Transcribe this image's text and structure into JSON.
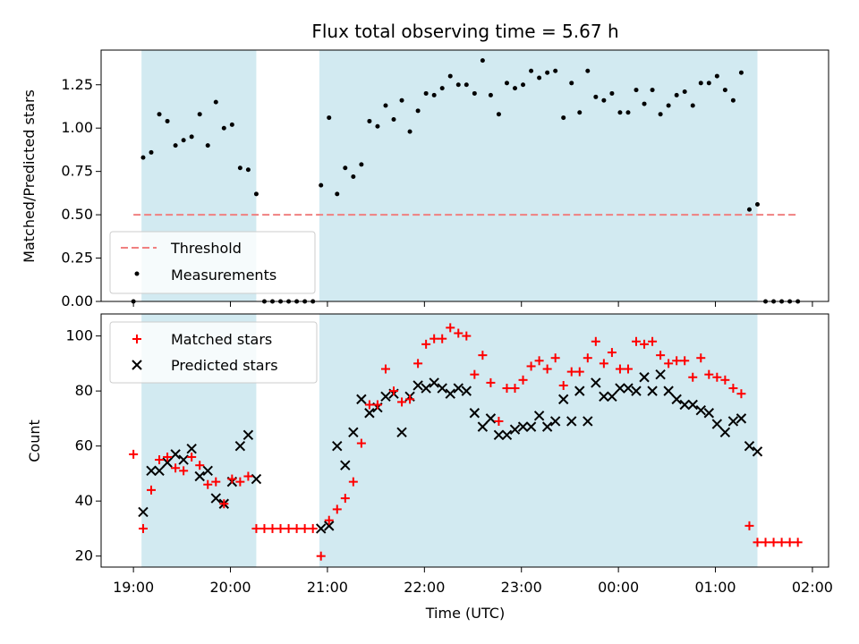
{
  "colors": {
    "shade": "#add8e6",
    "threshold": "#f08080",
    "measurement": "#000000",
    "matched": "#ff0000",
    "predicted": "#000000"
  },
  "chart_data": [
    {
      "type": "scatter",
      "title": "Flux total observing time = 5.67 h",
      "xlabel": "",
      "ylabel": "Matched/Predicted stars",
      "xlim": [
        "18:40",
        "02:10"
      ],
      "ylim": [
        0,
        1.45
      ],
      "y_ticks": [
        0.0,
        0.25,
        0.5,
        0.75,
        1.0,
        1.25
      ],
      "y_tick_labels": [
        "0.00",
        "0.25",
        "0.50",
        "0.75",
        "1.00",
        "1.25"
      ],
      "x_tick_labels_shown": false,
      "shaded_intervals": [
        [
          "19:05",
          "20:16"
        ],
        [
          "20:55",
          "01:26"
        ]
      ],
      "legend": {
        "placement": "lower-left",
        "entries": [
          "Threshold",
          "Measurements"
        ]
      },
      "threshold": {
        "name": "Threshold",
        "x": [
          "19:00",
          "01:50"
        ],
        "y": 0.5,
        "style": "dashed"
      },
      "series": [
        {
          "name": "Measurements",
          "x": [
            "19:00",
            "19:06",
            "19:11",
            "19:16",
            "19:21",
            "19:26",
            "19:31",
            "19:36",
            "19:41",
            "19:46",
            "19:51",
            "19:56",
            "20:01",
            "20:06",
            "20:11",
            "20:16",
            "20:21",
            "20:26",
            "20:31",
            "20:36",
            "20:41",
            "20:46",
            "20:51",
            "20:56",
            "21:01",
            "21:06",
            "21:11",
            "21:16",
            "21:21",
            "21:26",
            "21:31",
            "21:36",
            "21:41",
            "21:46",
            "21:51",
            "21:56",
            "22:01",
            "22:06",
            "22:11",
            "22:16",
            "22:21",
            "22:26",
            "22:31",
            "22:36",
            "22:41",
            "22:46",
            "22:51",
            "22:56",
            "23:01",
            "23:06",
            "23:11",
            "23:16",
            "23:21",
            "23:26",
            "23:31",
            "23:36",
            "23:41",
            "23:46",
            "23:51",
            "23:56",
            "00:01",
            "00:06",
            "00:11",
            "00:16",
            "00:21",
            "00:26",
            "00:31",
            "00:36",
            "00:41",
            "00:46",
            "00:51",
            "00:56",
            "01:01",
            "01:06",
            "01:11",
            "01:16",
            "01:21",
            "01:26",
            "01:31",
            "01:36",
            "01:41",
            "01:46",
            "01:51"
          ],
          "y": [
            0.0,
            0.83,
            0.86,
            1.08,
            1.04,
            0.9,
            0.93,
            0.95,
            1.08,
            0.9,
            1.15,
            1.0,
            1.02,
            0.77,
            0.76,
            0.62,
            0.0,
            0.0,
            0.0,
            0.0,
            0.0,
            0.0,
            0.0,
            0.67,
            1.06,
            0.62,
            0.77,
            0.72,
            0.79,
            1.04,
            1.01,
            1.13,
            1.05,
            1.16,
            0.98,
            1.1,
            1.2,
            1.19,
            1.23,
            1.3,
            1.25,
            1.25,
            1.2,
            1.39,
            1.19,
            1.08,
            1.26,
            1.23,
            1.25,
            1.33,
            1.29,
            1.32,
            1.33,
            1.06,
            1.26,
            1.09,
            1.33,
            1.18,
            1.16,
            1.2,
            1.09,
            1.09,
            1.22,
            1.14,
            1.22,
            1.08,
            1.13,
            1.19,
            1.21,
            1.13,
            1.26,
            1.26,
            1.3,
            1.22,
            1.16,
            1.32,
            0.53,
            0.56,
            0.0,
            0.0,
            0.0,
            0.0,
            0.0
          ]
        }
      ]
    },
    {
      "type": "scatter",
      "title": "",
      "xlabel": "Time (UTC)",
      "ylabel": "Count",
      "xlim": [
        "18:40",
        "02:10"
      ],
      "ylim": [
        16,
        108
      ],
      "y_ticks": [
        20,
        40,
        60,
        80,
        100
      ],
      "y_tick_labels": [
        "20",
        "40",
        "60",
        "80",
        "100"
      ],
      "x_ticks": [
        "19:00",
        "20:00",
        "21:00",
        "22:00",
        "23:00",
        "00:00",
        "01:00",
        "02:00"
      ],
      "x_tick_labels": [
        "19:00",
        "20:00",
        "21:00",
        "22:00",
        "23:00",
        "00:00",
        "01:00",
        "02:00"
      ],
      "shaded_intervals": [
        [
          "19:05",
          "20:16"
        ],
        [
          "20:55",
          "01:26"
        ]
      ],
      "legend": {
        "placement": "top-left",
        "entries": [
          "Matched stars",
          "Predicted stars"
        ]
      },
      "series": [
        {
          "name": "Matched stars",
          "marker": "plus",
          "x": [
            "19:00",
            "19:06",
            "19:11",
            "19:16",
            "19:21",
            "19:26",
            "19:31",
            "19:36",
            "19:41",
            "19:46",
            "19:51",
            "19:56",
            "20:01",
            "20:06",
            "20:11",
            "20:16",
            "20:21",
            "20:26",
            "20:31",
            "20:36",
            "20:41",
            "20:46",
            "20:51",
            "20:56",
            "21:01",
            "21:06",
            "21:11",
            "21:16",
            "21:21",
            "21:26",
            "21:31",
            "21:36",
            "21:41",
            "21:46",
            "21:51",
            "21:56",
            "22:01",
            "22:06",
            "22:11",
            "22:16",
            "22:21",
            "22:26",
            "22:31",
            "22:36",
            "22:41",
            "22:46",
            "22:51",
            "22:56",
            "23:01",
            "23:06",
            "23:11",
            "23:16",
            "23:21",
            "23:26",
            "23:31",
            "23:36",
            "23:41",
            "23:46",
            "23:51",
            "23:56",
            "00:01",
            "00:06",
            "00:11",
            "00:16",
            "00:21",
            "00:26",
            "00:31",
            "00:36",
            "00:41",
            "00:46",
            "00:51",
            "00:56",
            "01:01",
            "01:06",
            "01:11",
            "01:16",
            "01:21",
            "01:26",
            "01:31",
            "01:36",
            "01:41",
            "01:46",
            "01:51"
          ],
          "y": [
            57,
            30,
            44,
            55,
            56,
            52,
            51,
            56,
            53,
            46,
            47,
            39,
            48,
            47,
            49,
            30,
            30,
            30,
            30,
            30,
            30,
            30,
            30,
            20,
            33,
            37,
            41,
            47,
            61,
            75,
            75,
            88,
            80,
            76,
            77,
            90,
            97,
            99,
            99,
            103,
            101,
            100,
            86,
            93,
            83,
            69,
            81,
            81,
            84,
            89,
            91,
            88,
            92,
            82,
            87,
            87,
            92,
            98,
            90,
            94,
            88,
            88,
            98,
            97,
            98,
            93,
            90,
            91,
            91,
            85,
            92,
            86,
            85,
            84,
            81,
            79,
            31,
            25,
            25,
            25,
            25,
            25,
            25
          ]
        },
        {
          "name": "Predicted stars",
          "marker": "cross",
          "x": [
            "19:06",
            "19:11",
            "19:16",
            "19:21",
            "19:26",
            "19:31",
            "19:36",
            "19:41",
            "19:46",
            "19:51",
            "19:56",
            "20:01",
            "20:06",
            "20:11",
            "20:16",
            "20:56",
            "21:01",
            "21:06",
            "21:11",
            "21:16",
            "21:21",
            "21:26",
            "21:31",
            "21:36",
            "21:41",
            "21:46",
            "21:51",
            "21:56",
            "22:01",
            "22:06",
            "22:11",
            "22:16",
            "22:21",
            "22:26",
            "22:31",
            "22:36",
            "22:41",
            "22:46",
            "22:51",
            "22:56",
            "23:01",
            "23:06",
            "23:11",
            "23:16",
            "23:21",
            "23:26",
            "23:31",
            "23:36",
            "23:41",
            "23:46",
            "23:51",
            "23:56",
            "00:01",
            "00:06",
            "00:11",
            "00:16",
            "00:21",
            "00:26",
            "00:31",
            "00:36",
            "00:41",
            "00:46",
            "00:51",
            "00:56",
            "01:01",
            "01:06",
            "01:11",
            "01:16",
            "01:21",
            "01:26"
          ],
          "y": [
            36,
            51,
            51,
            54,
            57,
            55,
            59,
            49,
            51,
            41,
            39,
            47,
            60,
            64,
            48,
            30,
            31,
            60,
            53,
            65,
            77,
            72,
            74,
            78,
            79,
            65,
            78,
            82,
            81,
            83,
            81,
            79,
            81,
            80,
            72,
            67,
            70,
            64,
            64,
            66,
            67,
            67,
            71,
            67,
            69,
            77,
            69,
            80,
            69,
            83,
            78,
            78,
            81,
            81,
            80,
            85,
            80,
            86,
            80,
            77,
            75,
            75,
            73,
            72,
            68,
            65,
            69,
            70,
            60,
            58
          ]
        }
      ]
    }
  ]
}
